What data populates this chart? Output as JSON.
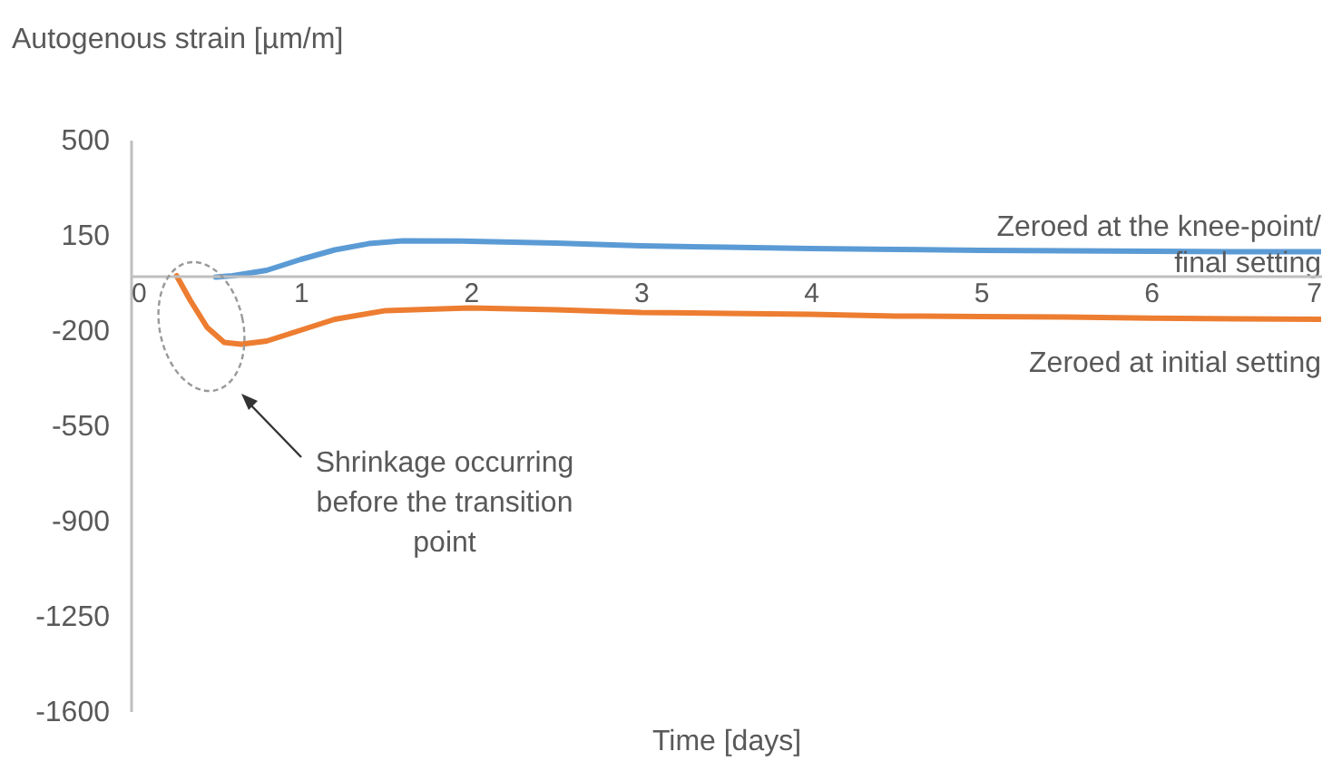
{
  "chart_data": {
    "type": "line",
    "xlabel": "Time [days]",
    "ylabel": "Autogenous strain [µm/m]",
    "xlim": [
      0,
      7
    ],
    "xticks": [
      0,
      1,
      2,
      3,
      4,
      5,
      6,
      7
    ],
    "ylim": [
      -1600,
      500
    ],
    "yticks": [
      500,
      150,
      -200,
      -550,
      -900,
      -1250,
      -1600
    ],
    "annotations": [
      "Shrinkage occurring before the transition point"
    ],
    "series": [
      {
        "name": "Zeroed at the knee-point/ final setting",
        "color": "#5b9bd5",
        "x": [
          0.5,
          0.6,
          0.8,
          1.0,
          1.2,
          1.4,
          1.6,
          2,
          2.5,
          3,
          3.5,
          4,
          4.5,
          5,
          5.5,
          6,
          6.5,
          7
        ],
        "values": [
          -5,
          0,
          20,
          60,
          95,
          118,
          128,
          127,
          120,
          110,
          105,
          100,
          97,
          93,
          92,
          90,
          88,
          88
        ]
      },
      {
        "name": "Zeroed at initial setting",
        "color": "#ed7d31",
        "x": [
          0.27,
          0.35,
          0.45,
          0.55,
          0.65,
          0.8,
          1.0,
          1.2,
          1.5,
          2,
          2.5,
          3,
          3.5,
          4,
          4.5,
          5,
          5.5,
          6,
          6.5,
          7
        ],
        "values": [
          0,
          -90,
          -190,
          -245,
          -252,
          -240,
          -200,
          -160,
          -128,
          -118,
          -125,
          -135,
          -138,
          -142,
          -148,
          -150,
          -152,
          -156,
          -158,
          -160
        ]
      }
    ]
  }
}
